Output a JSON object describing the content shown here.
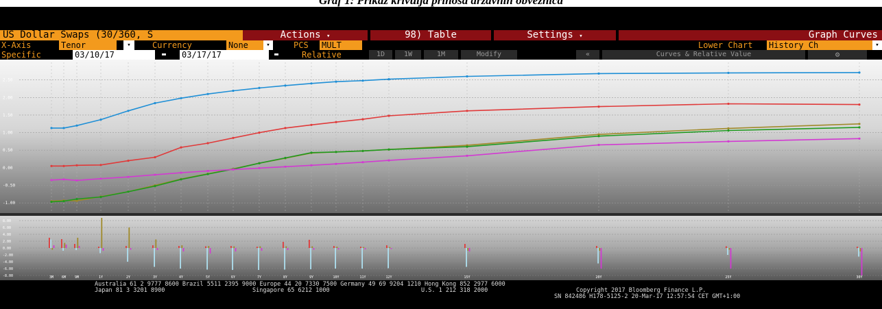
{
  "caption": "Graf 1: Prikaz krivulja prinosa državnih obveznica",
  "toolbar": {
    "title": "US Dollar Swaps (30/360, S",
    "actions_label": "Actions",
    "table_label": "98) Table",
    "settings_label": "Settings",
    "graph_curves_label": "Graph Curves",
    "dropdown_glyph": "▾"
  },
  "axis_row": {
    "xaxis_label": "X-Axis",
    "xaxis_value": "Tenor",
    "currency_label": "Currency",
    "currency_value": "None",
    "pcs_label": "PCS",
    "pcs_value": "MULT",
    "lower_chart_label": "Lower Chart",
    "lower_chart_value": "History Ch"
  },
  "date_row": {
    "specific_label": "Specific",
    "date_from": "03/10/17",
    "date_to": "03/17/17",
    "relative_label": "Relative",
    "btn_1d": "1D",
    "btn_1w": "1W",
    "btn_1m": "1M",
    "modify_label": "Modify",
    "collapse_glyph": "«",
    "curves_label": "Curves & Relative Value",
    "gear_glyph": "⚙",
    "calendar_glyph": "▬"
  },
  "footer": {
    "line1": "Australia 61 2 9777 8600 Brazil 5511 2395 9000 Europe 44 20 7330 7500 Germany 49 69 9204 1210 Hong Kong 852 2977 6000",
    "line2a": "Japan 81 3 3201 8900",
    "line2b": "Singapore 65 6212 1000",
    "line2c": "U.S. 1 212 318 2000",
    "line2d": "Copyright 2017 Bloomberg Finance L.P.",
    "line3": "SN 842486 H178-5125-2 20-Mar-17 12:57:54 CET  GMT+1:00"
  },
  "colors": {
    "orange": "#f39a1d",
    "red_bar": "#8a0f14",
    "blue": "#1f8fd6",
    "red": "#e03a3a",
    "green": "#1f9a1f",
    "olive": "#a08a2a",
    "magenta": "#d23ad2"
  },
  "chart_data": {
    "type": "line",
    "x_axis_tenors": [
      "3M",
      "6M",
      "9M",
      "1Y",
      "2Y",
      "3Y",
      "4Y",
      "5Y",
      "6Y",
      "7Y",
      "8Y",
      "9Y",
      "10Y",
      "11Y",
      "12Y",
      "15Y",
      "20Y",
      "25Y",
      "30Y"
    ],
    "y_ticks": [
      "2.50",
      "2.00",
      "1.50",
      "1.00",
      "0.50",
      "0.00",
      "-0.50",
      "-1.00"
    ],
    "ylim": [
      -1.25,
      3.0
    ],
    "lower_y_ticks": [
      "8.00",
      "6.00",
      "4.00",
      "2.00",
      "0.00",
      "-2.00",
      "-4.00",
      "-6.00",
      "-8.00"
    ],
    "lower_ylim": [
      -9,
      9
    ],
    "series": [
      {
        "color_key": "blue",
        "values": [
          1.13,
          1.13,
          1.2,
          1.37,
          1.62,
          1.84,
          1.98,
          2.1,
          2.19,
          2.27,
          2.34,
          2.4,
          2.45,
          2.48,
          2.52,
          2.6,
          2.68,
          2.7,
          2.71
        ]
      },
      {
        "color_key": "red",
        "values": [
          0.05,
          0.05,
          0.07,
          0.08,
          0.2,
          0.3,
          0.58,
          0.7,
          0.85,
          1.0,
          1.13,
          1.22,
          1.3,
          1.38,
          1.48,
          1.62,
          1.74,
          1.82,
          1.8
        ]
      },
      {
        "color_key": "olive",
        "values": [
          -0.95,
          -0.93,
          -0.94,
          -0.82,
          -0.68,
          -0.5,
          -0.32,
          -0.17,
          -0.03,
          0.13,
          0.27,
          0.42,
          0.45,
          0.48,
          0.52,
          0.64,
          0.95,
          1.12,
          1.25
        ]
      },
      {
        "color_key": "green",
        "values": [
          -0.97,
          -0.95,
          -0.89,
          -0.83,
          -0.68,
          -0.52,
          -0.33,
          -0.18,
          -0.04,
          0.13,
          0.28,
          0.43,
          0.45,
          0.48,
          0.52,
          0.6,
          0.9,
          1.06,
          1.15
        ]
      },
      {
        "color_key": "magenta",
        "values": [
          -0.35,
          -0.33,
          -0.36,
          -0.31,
          -0.26,
          -0.2,
          -0.14,
          -0.09,
          -0.05,
          -0.01,
          0.03,
          0.07,
          0.11,
          0.16,
          0.21,
          0.34,
          0.65,
          0.75,
          0.83
        ]
      }
    ],
    "lower_bars": [
      {
        "tenor": "3M",
        "values": [
          3.0,
          2.5,
          -0.5,
          0.8
        ]
      },
      {
        "tenor": "6M",
        "values": [
          2.6,
          -0.8,
          1.5,
          1.0
        ]
      },
      {
        "tenor": "9M",
        "values": [
          1.2,
          -0.6,
          3.0,
          0.6
        ]
      },
      {
        "tenor": "1Y",
        "values": [
          0.4,
          -1.5,
          8.8,
          -0.8
        ]
      },
      {
        "tenor": "2Y",
        "values": [
          0.6,
          -4.0,
          6.0,
          -0.5
        ]
      },
      {
        "tenor": "3Y",
        "values": [
          0.8,
          -5.5,
          2.5,
          -0.6
        ]
      },
      {
        "tenor": "4Y",
        "values": [
          0.6,
          -6.0,
          0.8,
          -1.0
        ]
      },
      {
        "tenor": "5Y",
        "values": [
          0.5,
          -6.3,
          0.6,
          -1.6
        ]
      },
      {
        "tenor": "6Y",
        "values": [
          0.6,
          -6.4,
          0.5,
          -1.0
        ]
      },
      {
        "tenor": "7Y",
        "values": [
          0.4,
          -6.4,
          0.5,
          -0.8
        ]
      },
      {
        "tenor": "8Y",
        "values": [
          1.8,
          -6.3,
          0.5,
          -0.6
        ]
      },
      {
        "tenor": "9Y",
        "values": [
          2.4,
          -6.2,
          0.5,
          -0.5
        ]
      },
      {
        "tenor": "10Y",
        "values": [
          0.6,
          -6.0,
          0.4,
          -0.4
        ]
      },
      {
        "tenor": "11Y",
        "values": [
          0.4,
          -6.0,
          0.3,
          -0.4
        ]
      },
      {
        "tenor": "12Y",
        "values": [
          0.8,
          -5.9,
          0.3,
          -0.3
        ]
      },
      {
        "tenor": "15Y",
        "values": [
          1.2,
          -5.5,
          -0.8,
          -1.0
        ]
      },
      {
        "tenor": "20Y",
        "values": [
          0.6,
          -4.5,
          -0.8,
          -6.0
        ]
      },
      {
        "tenor": "25Y",
        "values": [
          0.5,
          -2.0,
          -0.5,
          -6.0
        ]
      },
      {
        "tenor": "30Y",
        "values": [
          0.4,
          -2.5,
          -1.0,
          -8.0
        ]
      }
    ]
  }
}
